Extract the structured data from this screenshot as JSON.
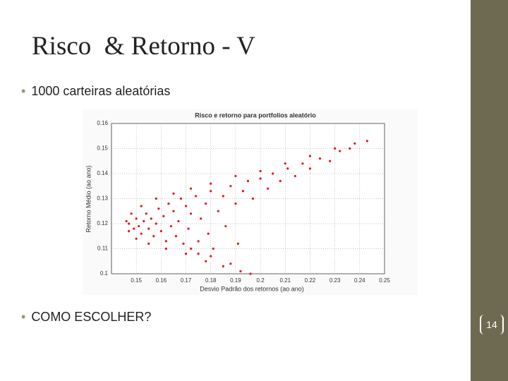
{
  "slide": {
    "title": "Risco  & Retorno - V",
    "bullets": [
      "1000 carteiras aleatórias",
      "COMO ESCOLHER?"
    ],
    "page_number": "14"
  },
  "chart_data": {
    "type": "scatter",
    "title": "Risco e retorno para portfolios aleatório",
    "x_label": "Desvio Padrão dos retornos (ao ano)",
    "y_label": "Retorno Médio (ao ano)",
    "color": "#e8141a",
    "grid": true,
    "xlim": [
      0.14,
      0.25
    ],
    "xticks": [
      0.15,
      0.16,
      0.17,
      0.18,
      0.19,
      0.2,
      0.21,
      0.22,
      0.23,
      0.24,
      0.25
    ],
    "ylim": [
      0.1,
      0.16
    ],
    "yticks": [
      0.1,
      0.11,
      0.12,
      0.13,
      0.14,
      0.15,
      0.16
    ],
    "x": [
      0.146,
      0.148,
      0.152,
      0.158,
      0.165,
      0.172,
      0.18,
      0.19,
      0.2,
      0.21,
      0.22,
      0.23,
      0.238,
      0.243,
      0.147,
      0.15,
      0.155,
      0.162,
      0.17,
      0.178,
      0.185,
      0.192,
      0.196,
      0.147,
      0.149,
      0.15,
      0.151,
      0.152,
      0.153,
      0.154,
      0.155,
      0.156,
      0.157,
      0.158,
      0.159,
      0.16,
      0.161,
      0.162,
      0.163,
      0.164,
      0.165,
      0.166,
      0.167,
      0.168,
      0.169,
      0.17,
      0.171,
      0.172,
      0.174,
      0.175,
      0.176,
      0.178,
      0.179,
      0.18,
      0.181,
      0.183,
      0.185,
      0.186,
      0.188,
      0.19,
      0.191,
      0.193,
      0.195,
      0.197,
      0.2,
      0.203,
      0.205,
      0.208,
      0.211,
      0.214,
      0.217,
      0.22,
      0.224,
      0.228,
      0.232,
      0.236,
      0.172,
      0.18,
      0.188,
      0.175
    ],
    "values": [
      0.121,
      0.124,
      0.127,
      0.13,
      0.132,
      0.134,
      0.136,
      0.139,
      0.141,
      0.144,
      0.147,
      0.15,
      0.152,
      0.153,
      0.117,
      0.114,
      0.112,
      0.11,
      0.108,
      0.105,
      0.103,
      0.101,
      0.1,
      0.12,
      0.118,
      0.122,
      0.119,
      0.116,
      0.121,
      0.124,
      0.118,
      0.122,
      0.115,
      0.12,
      0.126,
      0.117,
      0.123,
      0.113,
      0.128,
      0.119,
      0.125,
      0.115,
      0.121,
      0.13,
      0.112,
      0.127,
      0.118,
      0.124,
      0.131,
      0.113,
      0.122,
      0.128,
      0.116,
      0.133,
      0.11,
      0.125,
      0.131,
      0.119,
      0.135,
      0.128,
      0.112,
      0.133,
      0.137,
      0.13,
      0.138,
      0.134,
      0.14,
      0.137,
      0.142,
      0.139,
      0.144,
      0.142,
      0.146,
      0.145,
      0.149,
      0.15,
      0.11,
      0.107,
      0.104,
      0.108
    ]
  }
}
